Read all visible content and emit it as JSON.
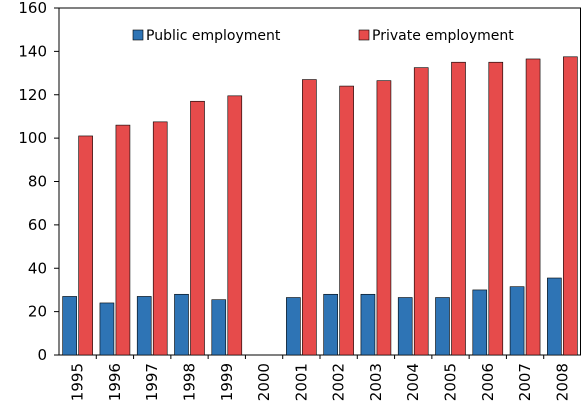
{
  "chart_data": {
    "type": "bar",
    "categories": [
      "1995",
      "1996",
      "1997",
      "1998",
      "1999",
      "2000",
      "2001",
      "2002",
      "2003",
      "2004",
      "2005",
      "2006",
      "2007",
      "2008"
    ],
    "series": [
      {
        "name": "Public employment",
        "color": "#2E74B5",
        "values": [
          27,
          24,
          27,
          28,
          25.5,
          null,
          26.5,
          28,
          28,
          26.5,
          26.5,
          30,
          31.5,
          35.5
        ]
      },
      {
        "name": "Private employment",
        "color": "#E64B4B",
        "values": [
          101,
          106,
          107.5,
          117,
          119.5,
          null,
          127,
          124,
          126.5,
          132.5,
          135,
          135,
          136.5,
          137.5
        ]
      }
    ],
    "ylim": [
      0,
      160
    ],
    "yticks": [
      0,
      20,
      40,
      60,
      80,
      100,
      120,
      140,
      160
    ],
    "grid": false,
    "legend_position": "top",
    "title": "",
    "xlabel": "",
    "ylabel": ""
  }
}
